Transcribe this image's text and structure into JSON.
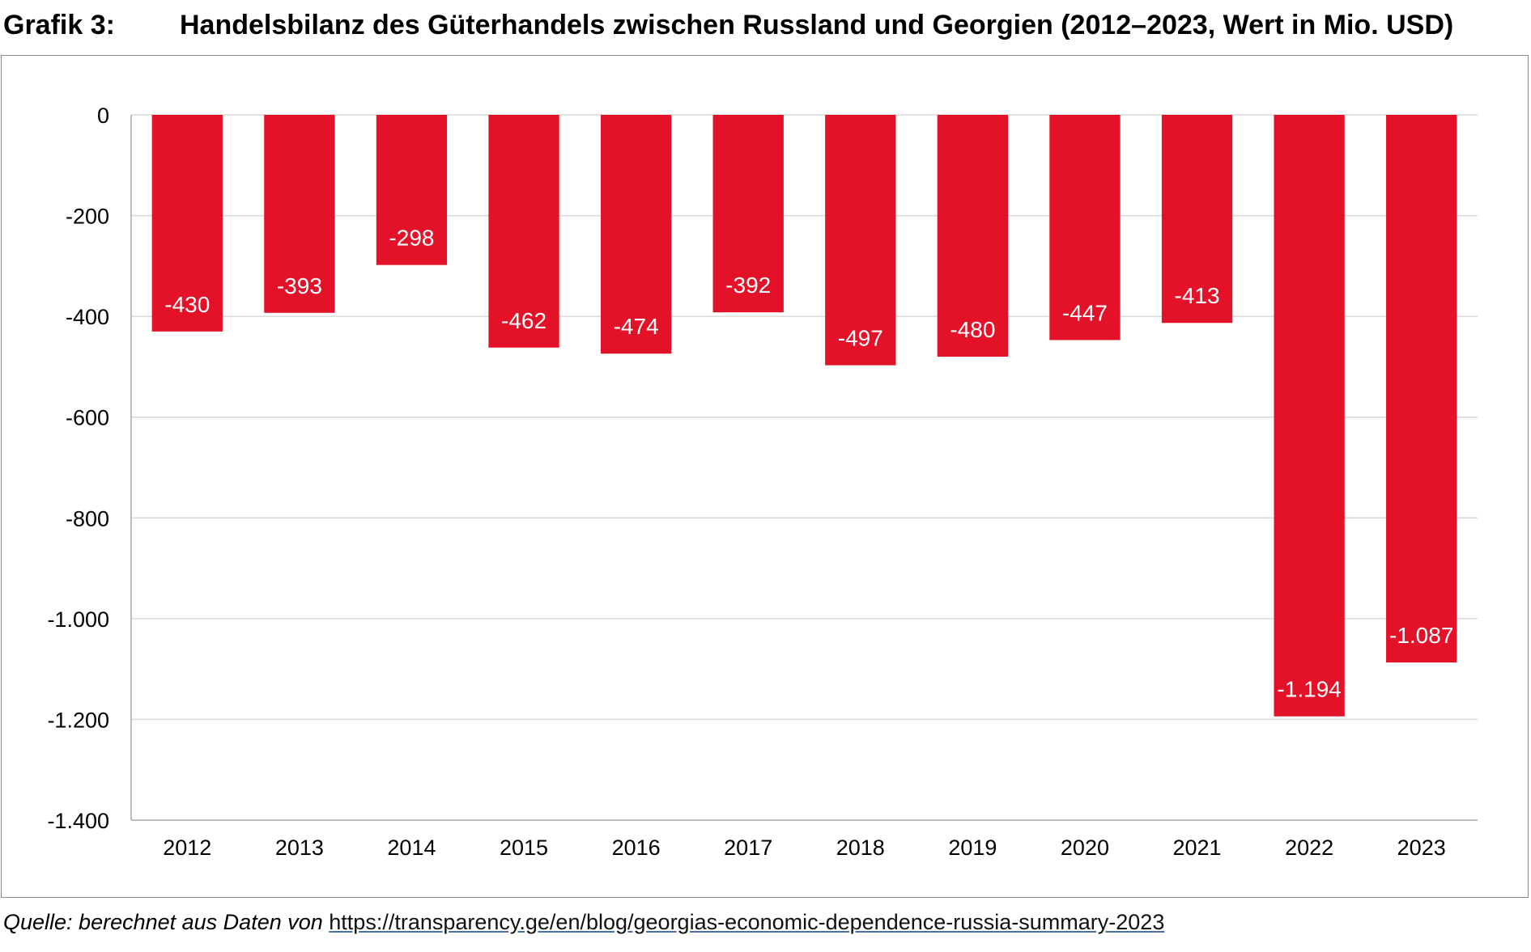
{
  "figure": {
    "label": "Grafik 3:",
    "title": "Handelsbilanz des Güterhandels zwischen Russland und Georgien (2012–2023, Wert in Mio. USD)"
  },
  "source": {
    "prefix": "Quelle: berechnet aus Daten von",
    "link": "https://transparency.ge/en/blog/georgias-economic-dependence-russia-summary-2023"
  },
  "colors": {
    "bar": "#e31228",
    "grid": "#d9d9d9",
    "axis": "#bfbfbf",
    "label_inside": "#ffffff"
  },
  "chart_data": {
    "type": "bar",
    "title": "Handelsbilanz des Güterhandels zwischen Russland und Georgien (2012–2023, Wert in Mio. USD)",
    "xlabel": "",
    "ylabel": "",
    "categories": [
      "2012",
      "2013",
      "2014",
      "2015",
      "2016",
      "2017",
      "2018",
      "2019",
      "2020",
      "2021",
      "2022",
      "2023"
    ],
    "values": [
      -430,
      -393,
      -298,
      -462,
      -474,
      -392,
      -497,
      -480,
      -447,
      -413,
      -1194,
      -1087
    ],
    "value_labels": [
      "-430",
      "-393",
      "-298",
      "-462",
      "-474",
      "-392",
      "-497",
      "-480",
      "-447",
      "-413",
      "-1.194",
      "-1.087"
    ],
    "ylim": [
      -1400,
      0
    ],
    "yticks": [
      0,
      -200,
      -400,
      -600,
      -800,
      -1000,
      -1200,
      -1400
    ],
    "ytick_labels": [
      "0",
      "-200",
      "-400",
      "-600",
      "-800",
      "-1.000",
      "-1.200",
      "-1.400"
    ],
    "grid": true,
    "legend": "none"
  }
}
